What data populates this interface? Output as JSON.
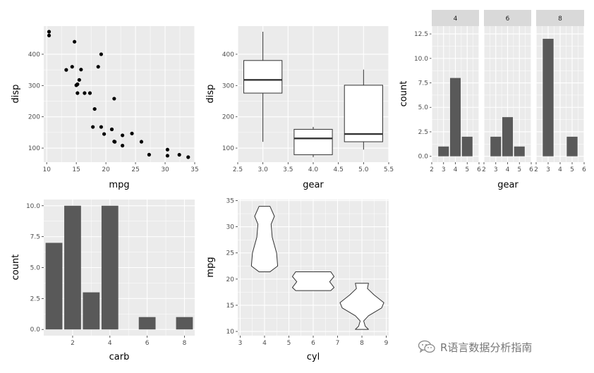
{
  "colors": {
    "panel_bg": "#EBEBEB",
    "grid": "#FFFFFF",
    "bar_fill": "#595959",
    "point": "#000000",
    "text": "#4D4D4D",
    "title": "#000000",
    "strip_bg": "#D9D9D9"
  },
  "watermark": {
    "text": "R语言数据分析指南",
    "icon": "wechat-icon"
  },
  "chart_data": [
    {
      "id": "p1",
      "type": "scatter",
      "xlabel": "mpg",
      "ylabel": "disp",
      "xlim": [
        9.5,
        35
      ],
      "ylim": [
        55,
        490
      ],
      "xticks": [
        10,
        15,
        20,
        25,
        30,
        35
      ],
      "yticks": [
        100,
        200,
        300,
        400
      ],
      "points": [
        [
          21.0,
          160
        ],
        [
          21.0,
          160
        ],
        [
          22.8,
          108
        ],
        [
          21.4,
          258
        ],
        [
          18.7,
          360
        ],
        [
          18.1,
          225
        ],
        [
          14.3,
          360
        ],
        [
          24.4,
          146.7
        ],
        [
          22.8,
          140.8
        ],
        [
          19.2,
          167.6
        ],
        [
          17.8,
          167.6
        ],
        [
          16.4,
          275.8
        ],
        [
          17.3,
          275.8
        ],
        [
          15.2,
          275.8
        ],
        [
          10.4,
          472
        ],
        [
          10.4,
          460
        ],
        [
          14.7,
          440
        ],
        [
          32.4,
          78.7
        ],
        [
          30.4,
          75.7
        ],
        [
          33.9,
          71.1
        ],
        [
          21.5,
          120.1
        ],
        [
          15.5,
          318
        ],
        [
          15.2,
          304
        ],
        [
          13.3,
          350
        ],
        [
          19.2,
          400
        ],
        [
          27.3,
          79
        ],
        [
          26.0,
          120.3
        ],
        [
          30.4,
          95.1
        ],
        [
          15.8,
          351
        ],
        [
          19.7,
          145
        ],
        [
          15.0,
          301
        ],
        [
          21.4,
          121
        ]
      ]
    },
    {
      "id": "p2",
      "type": "boxplot",
      "xlabel": "gear",
      "ylabel": "disp",
      "xlim": [
        2.5,
        5.5
      ],
      "ylim": [
        55,
        490
      ],
      "xticks": [
        2.5,
        3.0,
        3.5,
        4.0,
        4.5,
        5.0,
        5.5
      ],
      "yticks": [
        100,
        200,
        300,
        400
      ],
      "boxes": [
        {
          "x": 3,
          "min": 120.1,
          "q1": 275.8,
          "median": 318,
          "q3": 380,
          "max": 472
        },
        {
          "x": 4,
          "min": 71.1,
          "q1": 78.9,
          "median": 130.9,
          "q3": 160,
          "max": 167.6
        },
        {
          "x": 5,
          "min": 95.1,
          "q1": 120.3,
          "median": 145,
          "q3": 301,
          "max": 351
        }
      ]
    },
    {
      "id": "p3",
      "type": "bar",
      "facet_by": "cyl",
      "xlabel": "gear",
      "ylabel": "count",
      "xlim": [
        2,
        6
      ],
      "ylim": [
        -0.6,
        13.3
      ],
      "xticks": [
        2,
        3,
        4,
        5,
        6
      ],
      "yticks": [
        0.0,
        2.5,
        5.0,
        7.5,
        10.0,
        12.5
      ],
      "facets": [
        {
          "label": "4",
          "bars": [
            [
              3,
              1
            ],
            [
              4,
              8
            ],
            [
              5,
              2
            ]
          ]
        },
        {
          "label": "6",
          "bars": [
            [
              3,
              2
            ],
            [
              4,
              4
            ],
            [
              5,
              1
            ]
          ]
        },
        {
          "label": "8",
          "bars": [
            [
              3,
              12
            ],
            [
              5,
              2
            ]
          ]
        }
      ]
    },
    {
      "id": "p4",
      "type": "bar",
      "xlabel": "carb",
      "ylabel": "count",
      "xlim": [
        0.45,
        8.55
      ],
      "ylim": [
        -0.5,
        10.5
      ],
      "xticks": [
        2,
        4,
        6,
        8
      ],
      "yticks": [
        0.0,
        2.5,
        5.0,
        7.5,
        10.0
      ],
      "bars": [
        [
          1,
          7
        ],
        [
          2,
          10
        ],
        [
          3,
          3
        ],
        [
          4,
          10
        ],
        [
          6,
          1
        ],
        [
          8,
          1
        ]
      ]
    },
    {
      "id": "p5",
      "type": "violin",
      "xlabel": "cyl",
      "ylabel": "mpg",
      "xlim": [
        2.9,
        9.1
      ],
      "ylim": [
        9.2,
        35.2
      ],
      "xticks": [
        3,
        4,
        5,
        6,
        7,
        8,
        9
      ],
      "yticks": [
        10,
        15,
        20,
        25,
        30,
        35
      ],
      "violins": [
        {
          "x": 4,
          "width": 1.8,
          "profile": [
            [
              21.4,
              0.25
            ],
            [
              22.5,
              0.6
            ],
            [
              25,
              0.55
            ],
            [
              28,
              0.35
            ],
            [
              30.5,
              0.3
            ],
            [
              32,
              0.45
            ],
            [
              33.9,
              0.25
            ]
          ]
        },
        {
          "x": 6,
          "width": 1.8,
          "profile": [
            [
              17.8,
              0.8
            ],
            [
              18.4,
              0.95
            ],
            [
              19.5,
              0.75
            ],
            [
              20.5,
              0.95
            ],
            [
              21.4,
              0.8
            ]
          ]
        },
        {
          "x": 8,
          "width": 1.8,
          "profile": [
            [
              10.4,
              0.3
            ],
            [
              11,
              0.15
            ],
            [
              12,
              0.08
            ],
            [
              13,
              0.3
            ],
            [
              14.5,
              0.9
            ],
            [
              15.5,
              1.0
            ],
            [
              17,
              0.55
            ],
            [
              18.2,
              0.25
            ],
            [
              19.2,
              0.3
            ]
          ]
        }
      ]
    }
  ]
}
